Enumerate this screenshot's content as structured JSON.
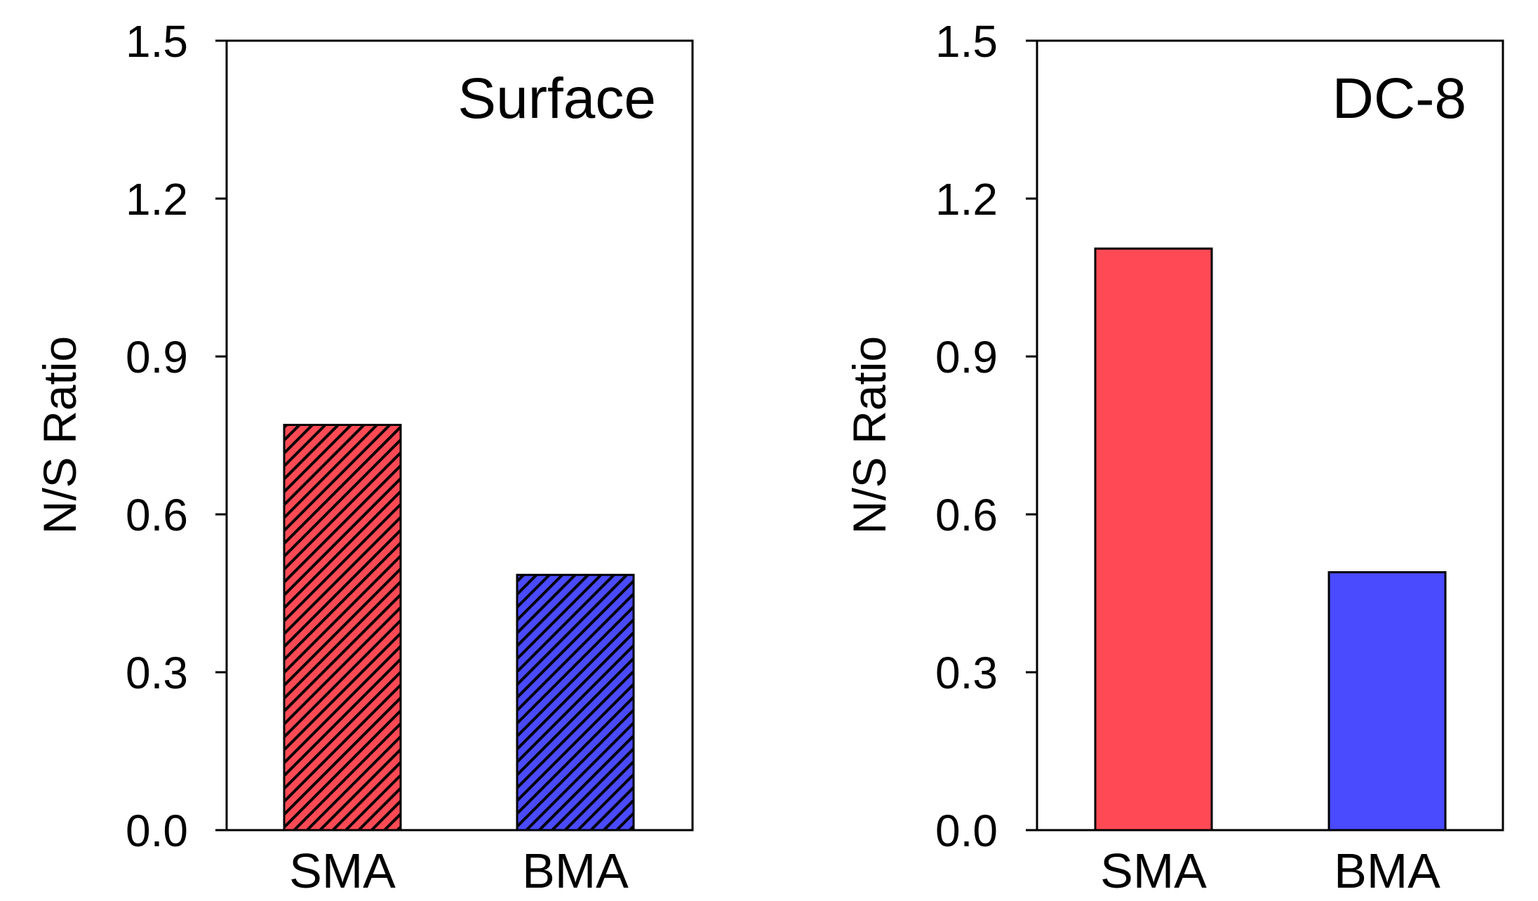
{
  "chart_data": [
    {
      "type": "bar",
      "title": "Surface",
      "ylabel": "N/S Ratio",
      "xlabel": "",
      "ylim": [
        0,
        1.5
      ],
      "yticks": [
        "0.0",
        "0.3",
        "0.6",
        "0.9",
        "1.2",
        "1.5"
      ],
      "categories": [
        "SMA",
        "BMA"
      ],
      "values": [
        0.77,
        0.485
      ],
      "colors": [
        "#ff4a55",
        "#4a4aff"
      ],
      "fill_style": "hatched",
      "legend": "none",
      "grid": false
    },
    {
      "type": "bar",
      "title": "DC-8",
      "ylabel": "N/S Ratio",
      "xlabel": "",
      "ylim": [
        0,
        1.5
      ],
      "yticks": [
        "0.0",
        "0.3",
        "0.6",
        "0.9",
        "1.2",
        "1.5"
      ],
      "categories": [
        "SMA",
        "BMA"
      ],
      "values": [
        1.105,
        0.49
      ],
      "colors": [
        "#ff4a55",
        "#4a4aff"
      ],
      "fill_style": "solid",
      "legend": "none",
      "grid": false
    }
  ]
}
